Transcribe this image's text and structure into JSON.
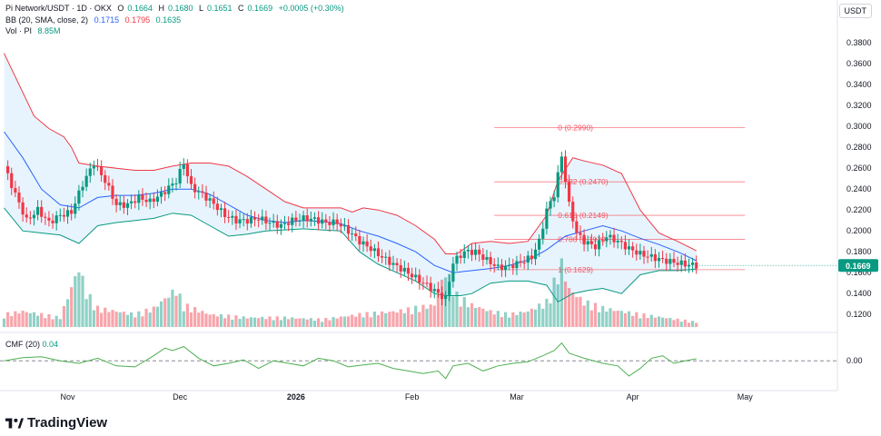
{
  "header": {
    "symbol": "Pi Network/USDT · 1D · OKX",
    "o_label": "O",
    "o": "0.1664",
    "h_label": "H",
    "h": "0.1680",
    "l_label": "L",
    "l": "0.1651",
    "c_label": "C",
    "c": "0.1669",
    "change": "+0.0005 (+0.30%)",
    "bb_label": "BB (20, SMA, close, 2)",
    "bb_basis": "0.1715",
    "bb_upper": "0.1795",
    "bb_lower": "0.1635",
    "vol_label": "Vol · PI",
    "vol": "8.85M"
  },
  "currency_button": "USDT",
  "cmf_label": "CMF (20)",
  "cmf_value": "0.04",
  "logo_text": "TradingView",
  "colors": {
    "up": "#089981",
    "down": "#f23645",
    "upper": "#f23645",
    "basis": "#2962ff",
    "lower": "#089981",
    "fill": "#e3f2fd",
    "fib": "#f7525f",
    "cmf": "#4caf50",
    "price_tag": "#089981"
  },
  "chart_data": [
    {
      "type": "line",
      "title": "Pi Network/USDT · 1D · OKX",
      "price_axis_ticks": [
        "0.3800",
        "0.3600",
        "0.3400",
        "0.3200",
        "0.3000",
        "0.2800",
        "0.2600",
        "0.2400",
        "0.2200",
        "0.2000",
        "0.1800",
        "0.1600",
        "0.1400",
        "0.1200"
      ],
      "price_axis_values": [
        0.38,
        0.36,
        0.34,
        0.32,
        0.3,
        0.28,
        0.26,
        0.24,
        0.22,
        0.2,
        0.18,
        0.16,
        0.14,
        0.12
      ],
      "ylim": [
        0.108,
        0.395
      ],
      "last_price": 0.1669,
      "last_price_label": "0.1669",
      "time_axis_labels": [
        "Nov",
        "Dec",
        "2026",
        "Feb",
        "Mar",
        "Apr",
        "May"
      ],
      "time_axis_days": [
        17,
        47,
        78,
        109,
        137,
        168,
        198
      ],
      "fib_levels": [
        {
          "label": "0 (0.2990)",
          "value": 0.299
        },
        {
          "label": "0.382 (0.2470)",
          "value": 0.247
        },
        {
          "label": "0.618 (0.2149)",
          "value": 0.2149
        },
        {
          "label": "0.786 (0.1920)",
          "value": 0.192
        },
        {
          "label": "1 (0.1629)",
          "value": 0.1629
        }
      ],
      "fib_day_range": [
        131,
        198
      ],
      "close_keypoints": [
        [
          0,
          0.262
        ],
        [
          3,
          0.235
        ],
        [
          6,
          0.21
        ],
        [
          9,
          0.22
        ],
        [
          12,
          0.208
        ],
        [
          15,
          0.215
        ],
        [
          18,
          0.218
        ],
        [
          21,
          0.245
        ],
        [
          24,
          0.265
        ],
        [
          27,
          0.248
        ],
        [
          30,
          0.225
        ],
        [
          33,
          0.225
        ],
        [
          36,
          0.232
        ],
        [
          39,
          0.228
        ],
        [
          42,
          0.235
        ],
        [
          46,
          0.248
        ],
        [
          48,
          0.265
        ],
        [
          50,
          0.242
        ],
        [
          53,
          0.235
        ],
        [
          56,
          0.226
        ],
        [
          59,
          0.215
        ],
        [
          62,
          0.21
        ],
        [
          65,
          0.21
        ],
        [
          68,
          0.212
        ],
        [
          71,
          0.208
        ],
        [
          74,
          0.205
        ],
        [
          77,
          0.21
        ],
        [
          80,
          0.212
        ],
        [
          83,
          0.211
        ],
        [
          86,
          0.208
        ],
        [
          89,
          0.208
        ],
        [
          92,
          0.2
        ],
        [
          95,
          0.19
        ],
        [
          98,
          0.183
        ],
        [
          101,
          0.175
        ],
        [
          104,
          0.168
        ],
        [
          107,
          0.162
        ],
        [
          110,
          0.155
        ],
        [
          113,
          0.148
        ],
        [
          116,
          0.14
        ],
        [
          118,
          0.135
        ],
        [
          120,
          0.17
        ],
        [
          123,
          0.18
        ],
        [
          126,
          0.18
        ],
        [
          129,
          0.172
        ],
        [
          132,
          0.165
        ],
        [
          135,
          0.166
        ],
        [
          138,
          0.17
        ],
        [
          141,
          0.175
        ],
        [
          143,
          0.19
        ],
        [
          145,
          0.22
        ],
        [
          147,
          0.235
        ],
        [
          149,
          0.272
        ],
        [
          151,
          0.225
        ],
        [
          153,
          0.198
        ],
        [
          155,
          0.19
        ],
        [
          158,
          0.185
        ],
        [
          161,
          0.195
        ],
        [
          164,
          0.19
        ],
        [
          167,
          0.183
        ],
        [
          170,
          0.178
        ],
        [
          173,
          0.175
        ],
        [
          176,
          0.172
        ],
        [
          179,
          0.17
        ],
        [
          182,
          0.168
        ],
        [
          185,
          0.1669
        ]
      ],
      "bb_upper_keypoints": [
        [
          0,
          0.37
        ],
        [
          4,
          0.34
        ],
        [
          8,
          0.31
        ],
        [
          12,
          0.298
        ],
        [
          16,
          0.29
        ],
        [
          18,
          0.28
        ],
        [
          20,
          0.265
        ],
        [
          25,
          0.262
        ],
        [
          30,
          0.26
        ],
        [
          35,
          0.258
        ],
        [
          40,
          0.258
        ],
        [
          45,
          0.262
        ],
        [
          50,
          0.265
        ],
        [
          55,
          0.265
        ],
        [
          60,
          0.262
        ],
        [
          65,
          0.252
        ],
        [
          70,
          0.24
        ],
        [
          75,
          0.228
        ],
        [
          80,
          0.222
        ],
        [
          85,
          0.222
        ],
        [
          90,
          0.222
        ],
        [
          93,
          0.218
        ],
        [
          96,
          0.222
        ],
        [
          100,
          0.22
        ],
        [
          105,
          0.215
        ],
        [
          110,
          0.205
        ],
        [
          115,
          0.192
        ],
        [
          118,
          0.178
        ],
        [
          121,
          0.178
        ],
        [
          125,
          0.188
        ],
        [
          130,
          0.19
        ],
        [
          135,
          0.188
        ],
        [
          140,
          0.19
        ],
        [
          145,
          0.215
        ],
        [
          148,
          0.248
        ],
        [
          152,
          0.27
        ],
        [
          155,
          0.267
        ],
        [
          160,
          0.263
        ],
        [
          165,
          0.255
        ],
        [
          170,
          0.22
        ],
        [
          175,
          0.198
        ],
        [
          180,
          0.19
        ],
        [
          185,
          0.181
        ]
      ],
      "bb_basis_keypoints": [
        [
          0,
          0.295
        ],
        [
          5,
          0.27
        ],
        [
          10,
          0.24
        ],
        [
          15,
          0.225
        ],
        [
          20,
          0.222
        ],
        [
          25,
          0.232
        ],
        [
          30,
          0.234
        ],
        [
          35,
          0.234
        ],
        [
          40,
          0.236
        ],
        [
          45,
          0.24
        ],
        [
          50,
          0.24
        ],
        [
          55,
          0.235
        ],
        [
          60,
          0.225
        ],
        [
          65,
          0.215
        ],
        [
          70,
          0.21
        ],
        [
          75,
          0.208
        ],
        [
          80,
          0.21
        ],
        [
          85,
          0.209
        ],
        [
          90,
          0.207
        ],
        [
          95,
          0.2
        ],
        [
          100,
          0.195
        ],
        [
          105,
          0.188
        ],
        [
          110,
          0.18
        ],
        [
          115,
          0.167
        ],
        [
          120,
          0.16
        ],
        [
          125,
          0.162
        ],
        [
          130,
          0.164
        ],
        [
          135,
          0.167
        ],
        [
          140,
          0.172
        ],
        [
          145,
          0.182
        ],
        [
          150,
          0.195
        ],
        [
          155,
          0.2
        ],
        [
          160,
          0.205
        ],
        [
          165,
          0.2
        ],
        [
          170,
          0.193
        ],
        [
          175,
          0.187
        ],
        [
          180,
          0.18
        ],
        [
          185,
          0.1715
        ]
      ],
      "bb_lower_keypoints": [
        [
          0,
          0.222
        ],
        [
          5,
          0.2
        ],
        [
          10,
          0.198
        ],
        [
          15,
          0.196
        ],
        [
          20,
          0.188
        ],
        [
          25,
          0.205
        ],
        [
          30,
          0.208
        ],
        [
          35,
          0.21
        ],
        [
          40,
          0.212
        ],
        [
          45,
          0.217
        ],
        [
          50,
          0.215
        ],
        [
          55,
          0.205
        ],
        [
          60,
          0.195
        ],
        [
          65,
          0.197
        ],
        [
          70,
          0.2
        ],
        [
          75,
          0.201
        ],
        [
          80,
          0.202
        ],
        [
          85,
          0.201
        ],
        [
          90,
          0.2
        ],
        [
          95,
          0.18
        ],
        [
          100,
          0.168
        ],
        [
          105,
          0.16
        ],
        [
          110,
          0.152
        ],
        [
          115,
          0.14
        ],
        [
          118,
          0.138
        ],
        [
          122,
          0.138
        ],
        [
          125,
          0.14
        ],
        [
          130,
          0.15
        ],
        [
          135,
          0.152
        ],
        [
          140,
          0.152
        ],
        [
          145,
          0.148
        ],
        [
          148,
          0.132
        ],
        [
          152,
          0.14
        ],
        [
          156,
          0.143
        ],
        [
          160,
          0.145
        ],
        [
          165,
          0.14
        ],
        [
          170,
          0.158
        ],
        [
          175,
          0.162
        ],
        [
          180,
          0.162
        ],
        [
          185,
          0.1635
        ]
      ],
      "volume_keypoints": [
        [
          0,
          0.2
        ],
        [
          5,
          0.25
        ],
        [
          10,
          0.2
        ],
        [
          15,
          0.15
        ],
        [
          20,
          0.95
        ],
        [
          22,
          0.55
        ],
        [
          25,
          0.3
        ],
        [
          30,
          0.25
        ],
        [
          35,
          0.2
        ],
        [
          40,
          0.3
        ],
        [
          46,
          0.6
        ],
        [
          48,
          0.35
        ],
        [
          55,
          0.2
        ],
        [
          65,
          0.15
        ],
        [
          75,
          0.15
        ],
        [
          85,
          0.12
        ],
        [
          95,
          0.2
        ],
        [
          105,
          0.25
        ],
        [
          110,
          0.3
        ],
        [
          115,
          0.35
        ],
        [
          118,
          0.9
        ],
        [
          121,
          0.5
        ],
        [
          125,
          0.35
        ],
        [
          130,
          0.25
        ],
        [
          135,
          0.2
        ],
        [
          140,
          0.25
        ],
        [
          145,
          0.4
        ],
        [
          149,
          1.0
        ],
        [
          151,
          0.6
        ],
        [
          155,
          0.4
        ],
        [
          160,
          0.3
        ],
        [
          170,
          0.2
        ],
        [
          185,
          0.08
        ]
      ]
    },
    {
      "type": "line",
      "title": "CMF (20)",
      "last_value": 0.04,
      "y_tick": "0.00",
      "ylim": [
        -0.55,
        0.45
      ],
      "series_keypoints": [
        [
          0,
          0.0
        ],
        [
          5,
          0.06
        ],
        [
          10,
          0.08
        ],
        [
          15,
          0.0
        ],
        [
          20,
          -0.05
        ],
        [
          25,
          0.05
        ],
        [
          30,
          -0.1
        ],
        [
          35,
          -0.12
        ],
        [
          40,
          0.1
        ],
        [
          43,
          0.25
        ],
        [
          45,
          0.2
        ],
        [
          48,
          0.28
        ],
        [
          52,
          0.05
        ],
        [
          56,
          -0.1
        ],
        [
          60,
          -0.05
        ],
        [
          64,
          0.02
        ],
        [
          68,
          -0.15
        ],
        [
          72,
          0.0
        ],
        [
          76,
          -0.05
        ],
        [
          80,
          -0.1
        ],
        [
          84,
          0.05
        ],
        [
          88,
          0.0
        ],
        [
          92,
          -0.12
        ],
        [
          96,
          -0.08
        ],
        [
          100,
          -0.05
        ],
        [
          104,
          -0.15
        ],
        [
          108,
          -0.2
        ],
        [
          112,
          -0.25
        ],
        [
          116,
          -0.2
        ],
        [
          118,
          -0.35
        ],
        [
          120,
          -0.1
        ],
        [
          124,
          -0.05
        ],
        [
          128,
          -0.2
        ],
        [
          132,
          -0.1
        ],
        [
          136,
          -0.05
        ],
        [
          140,
          -0.02
        ],
        [
          144,
          0.1
        ],
        [
          147,
          0.2
        ],
        [
          149,
          0.35
        ],
        [
          151,
          0.15
        ],
        [
          155,
          0.05
        ],
        [
          160,
          -0.05
        ],
        [
          164,
          -0.1
        ],
        [
          167,
          -0.3
        ],
        [
          170,
          -0.15
        ],
        [
          173,
          0.05
        ],
        [
          176,
          0.1
        ],
        [
          179,
          -0.05
        ],
        [
          182,
          0.0
        ],
        [
          185,
          0.04
        ]
      ]
    }
  ]
}
